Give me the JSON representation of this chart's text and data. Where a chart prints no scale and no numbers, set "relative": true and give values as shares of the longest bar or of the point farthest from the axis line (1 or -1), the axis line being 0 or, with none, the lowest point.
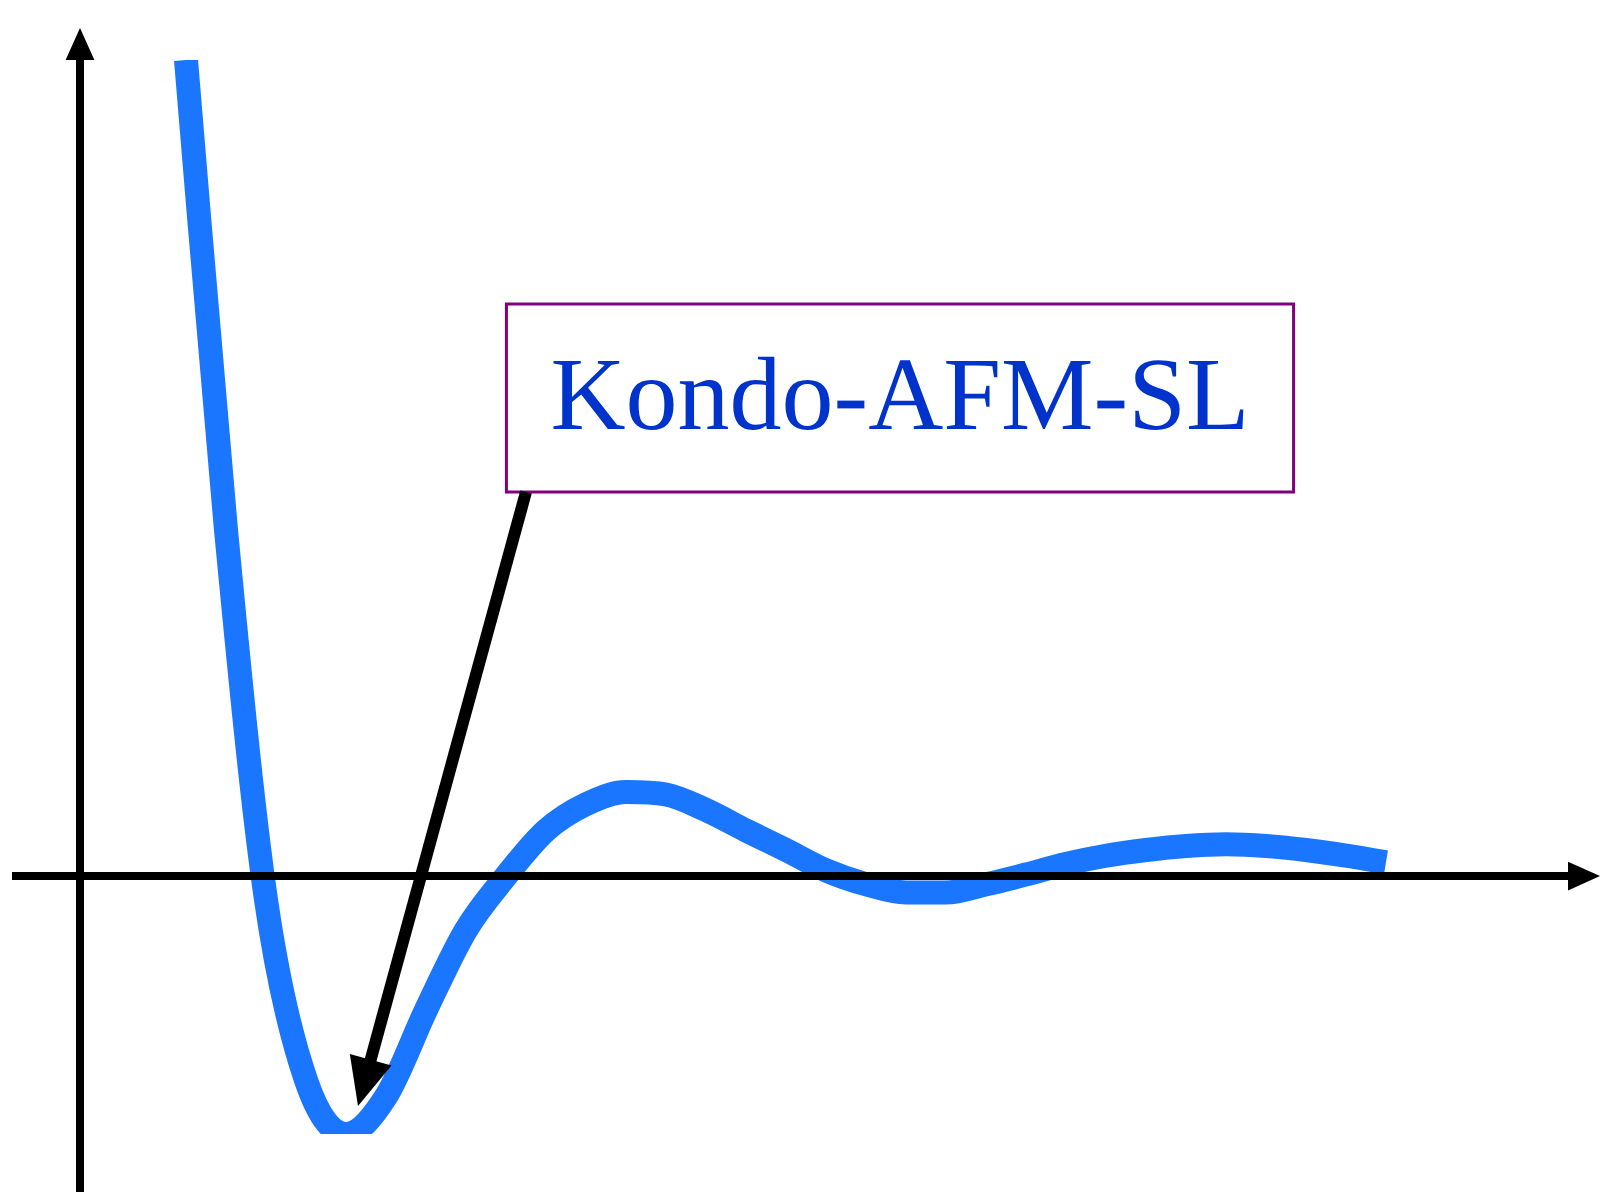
{
  "chart_data": {
    "type": "line",
    "relative": true,
    "categories": [
      null,
      null,
      null,
      null,
      null,
      null,
      null,
      null,
      null,
      null,
      null,
      null,
      null,
      null,
      null,
      null,
      null,
      null,
      null,
      null,
      null,
      null,
      null,
      null,
      null,
      null,
      null,
      null,
      null,
      null,
      null
    ],
    "series": [
      {
        "color": "#1a75ff",
        "values": [
          1.0,
          0.424,
          -0.029,
          -0.25,
          -0.316,
          -0.27,
          -0.164,
          -0.066,
          0.0,
          0.056,
          0.088,
          0.103,
          0.1,
          0.081,
          0.056,
          0.032,
          0.007,
          -0.01,
          -0.02,
          -0.02,
          -0.01,
          0.002,
          0.015,
          0.025,
          0.032,
          0.037,
          0.039,
          0.037,
          0.032,
          0.025,
          0.017
        ]
      }
    ],
    "annotations": [
      "Kondo-AFM-SL"
    ],
    "legend": false,
    "marker": "none",
    "line_style": "solid"
  }
}
